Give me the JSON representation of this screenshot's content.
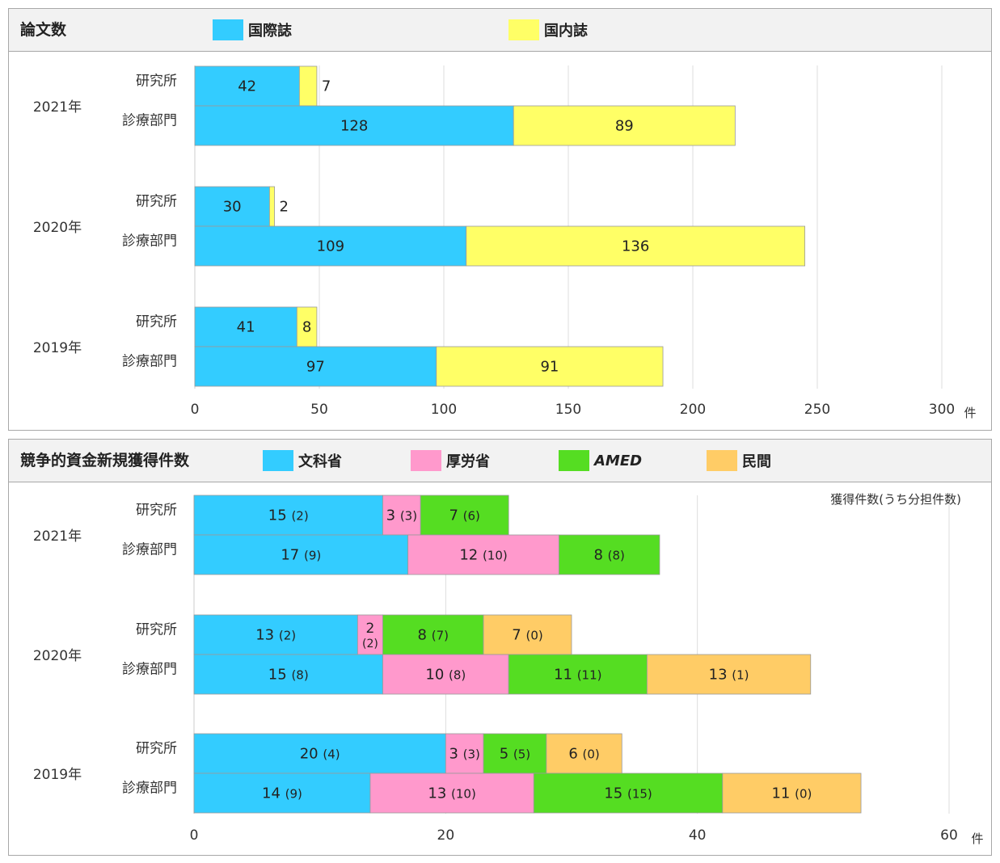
{
  "colors": {
    "intl": "#33ccff",
    "domestic": "#ffff66",
    "monka": "#33ccff",
    "kourou": "#ff99cc",
    "amed": "#55dd22",
    "minkan": "#ffcc66",
    "grid": "#dddddd",
    "bar_border": "#999999"
  },
  "papers": {
    "title": "論文数",
    "legend": [
      {
        "label": "国際誌",
        "color": "#33ccff",
        "icon": "color-swatch"
      },
      {
        "label": "国内誌",
        "color": "#ffff66",
        "icon": "color-swatch"
      }
    ],
    "unit": "件"
  },
  "funding": {
    "title": "競争的資金新規獲得件数",
    "legend": [
      {
        "label": "文科省",
        "color": "#33ccff",
        "italic": false
      },
      {
        "label": "厚労省",
        "color": "#ff99cc",
        "italic": false
      },
      {
        "label": "AMED",
        "color": "#55dd22",
        "italic": true
      },
      {
        "label": "民間",
        "color": "#ffcc66",
        "italic": false
      }
    ],
    "note": "獲得件数(うち分担件数)",
    "unit": "件"
  },
  "chart_data": [
    {
      "type": "bar",
      "orientation": "horizontal",
      "stacked": true,
      "title": "論文数",
      "xlabel": "件",
      "xlim": [
        0,
        300
      ],
      "xticks": [
        0,
        50,
        100,
        150,
        200,
        250,
        300
      ],
      "grid": true,
      "legend_position": "top",
      "groups": [
        "2021年",
        "2020年",
        "2019年"
      ],
      "categories": [
        "研究所",
        "診療部門"
      ],
      "series": [
        {
          "name": "国際誌",
          "values": [
            [
              42,
              128
            ],
            [
              30,
              109
            ],
            [
              41,
              97
            ]
          ]
        },
        {
          "name": "国内誌",
          "values": [
            [
              7,
              89
            ],
            [
              2,
              136
            ],
            [
              8,
              91
            ]
          ]
        }
      ]
    },
    {
      "type": "bar",
      "orientation": "horizontal",
      "stacked": true,
      "title": "競争的資金新規獲得件数",
      "xlabel": "件",
      "xlim": [
        0,
        60
      ],
      "xticks": [
        0,
        20,
        40,
        60
      ],
      "grid": true,
      "legend_position": "top",
      "annotation": "獲得件数(うち分担件数)",
      "groups": [
        "2021年",
        "2020年",
        "2019年"
      ],
      "categories": [
        "研究所",
        "診療部門"
      ],
      "series": [
        {
          "name": "文科省",
          "values": [
            [
              15,
              17
            ],
            [
              13,
              15
            ],
            [
              20,
              14
            ]
          ],
          "shared": [
            [
              2,
              9
            ],
            [
              2,
              8
            ],
            [
              4,
              9
            ]
          ]
        },
        {
          "name": "厚労省",
          "values": [
            [
              3,
              12
            ],
            [
              2,
              10
            ],
            [
              3,
              13
            ]
          ],
          "shared": [
            [
              3,
              10
            ],
            [
              2,
              8
            ],
            [
              3,
              10
            ]
          ]
        },
        {
          "name": "AMED",
          "values": [
            [
              7,
              8
            ],
            [
              8,
              11
            ],
            [
              5,
              15
            ]
          ],
          "shared": [
            [
              6,
              8
            ],
            [
              7,
              11
            ],
            [
              5,
              15
            ]
          ]
        },
        {
          "name": "民間",
          "values": [
            [
              0,
              0
            ],
            [
              7,
              13
            ],
            [
              6,
              11
            ]
          ],
          "shared": [
            [
              0,
              0
            ],
            [
              0,
              1
            ],
            [
              0,
              0
            ]
          ]
        }
      ]
    }
  ]
}
